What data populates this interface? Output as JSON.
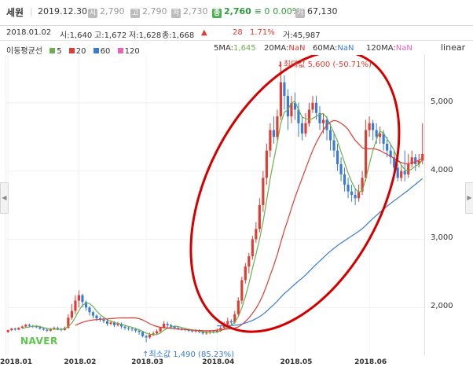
{
  "header": {
    "name": "세원",
    "date": "2019.12.30",
    "stats": [
      {
        "badge": "시",
        "value": "2,790"
      },
      {
        "badge": "고",
        "value": "2,790"
      },
      {
        "badge": "저",
        "value": "2,730"
      }
    ],
    "close_badge": "종",
    "close": "2,760",
    "change": "≡ 0",
    "change_pct": "0.00%",
    "volume_badge": "거",
    "volume": "67,130"
  },
  "info": {
    "date": "2018.01.02",
    "open": "시:1,640",
    "high": "고:1,672",
    "low": "저:1,628",
    "close": "종:1,668",
    "arrow": "▲",
    "change": "28",
    "change_pct": "1.71%",
    "volume": "거:45,987"
  },
  "ma_legend": {
    "title": "이동평균선",
    "items": [
      {
        "label": "5",
        "color": "#6ab04c"
      },
      {
        "label": "20",
        "color": "#e03c31"
      },
      {
        "label": "60",
        "color": "#3a7bd5"
      },
      {
        "label": "120",
        "color": "#e864b3"
      }
    ]
  },
  "ma_values": [
    {
      "label": "5MA:",
      "value": "1,645",
      "color": "#6ab04c"
    },
    {
      "label": "20MA:",
      "value": "NaN",
      "color": "#e03c31"
    },
    {
      "label": "60MA:",
      "value": "NaN",
      "color": "#3a7bd5"
    },
    {
      "label": "120MA:",
      "value": "NaN",
      "color": "#e864b3"
    }
  ],
  "scale_label": "linear",
  "colors": {
    "up": "#e03c31",
    "down": "#3a7bd5",
    "ma5": "#6ab04c",
    "ma20": "#e03c31",
    "ma60": "#3a7bd5",
    "ma120": "#e864b3",
    "ellipse": "#d40000"
  },
  "annotations": {
    "max": "최대값 5,600 (-50.71%)",
    "min": "최소값 1,490 (85.23%)"
  },
  "watermark": "NAVER",
  "chart_data": {
    "type": "candlestick",
    "ylim": [
      1300,
      5700
    ],
    "yticks": [
      2000,
      3000,
      4000,
      5000
    ],
    "x_ticks": [
      {
        "label": "2018.01",
        "i": 0
      },
      {
        "label": "2018.02",
        "i": 20
      },
      {
        "label": "2018.03",
        "i": 39
      },
      {
        "label": "2018.04",
        "i": 59
      },
      {
        "label": "2018.05",
        "i": 81
      },
      {
        "label": "2018.06",
        "i": 102
      }
    ],
    "candles": [
      [
        1640,
        1668,
        1672,
        1628
      ],
      [
        1668,
        1690,
        1700,
        1655
      ],
      [
        1690,
        1675,
        1705,
        1660
      ],
      [
        1675,
        1700,
        1710,
        1665
      ],
      [
        1700,
        1720,
        1735,
        1690
      ],
      [
        1720,
        1745,
        1760,
        1710
      ],
      [
        1745,
        1730,
        1765,
        1715
      ],
      [
        1730,
        1725,
        1745,
        1700
      ],
      [
        1725,
        1710,
        1740,
        1695
      ],
      [
        1710,
        1690,
        1720,
        1675
      ],
      [
        1690,
        1675,
        1705,
        1660
      ],
      [
        1675,
        1660,
        1690,
        1640
      ],
      [
        1660,
        1680,
        1700,
        1645
      ],
      [
        1680,
        1700,
        1720,
        1670
      ],
      [
        1700,
        1685,
        1720,
        1665
      ],
      [
        1685,
        1670,
        1700,
        1650
      ],
      [
        1670,
        1700,
        1720,
        1660
      ],
      [
        1700,
        1850,
        1900,
        1690
      ],
      [
        1850,
        1950,
        2050,
        1820
      ],
      [
        1950,
        2100,
        2180,
        1900
      ],
      [
        2100,
        2180,
        2250,
        2000
      ],
      [
        2180,
        2080,
        2200,
        2000
      ],
      [
        2080,
        2000,
        2100,
        1950
      ],
      [
        2000,
        1930,
        2020,
        1880
      ],
      [
        1930,
        1880,
        1950,
        1840
      ],
      [
        1880,
        1840,
        1900,
        1800
      ],
      [
        1840,
        1820,
        1870,
        1790
      ],
      [
        1820,
        1800,
        1850,
        1770
      ],
      [
        1800,
        1760,
        1820,
        1730
      ],
      [
        1760,
        1780,
        1810,
        1740
      ],
      [
        1780,
        1740,
        1800,
        1710
      ],
      [
        1740,
        1760,
        1790,
        1720
      ],
      [
        1760,
        1720,
        1780,
        1690
      ],
      [
        1720,
        1700,
        1740,
        1670
      ],
      [
        1700,
        1690,
        1720,
        1660
      ],
      [
        1690,
        1680,
        1710,
        1650
      ],
      [
        1680,
        1660,
        1700,
        1630
      ],
      [
        1660,
        1640,
        1680,
        1600
      ],
      [
        1640,
        1580,
        1650,
        1560
      ],
      [
        1580,
        1560,
        1600,
        1490
      ],
      [
        1560,
        1600,
        1630,
        1540
      ],
      [
        1600,
        1620,
        1650,
        1580
      ],
      [
        1620,
        1650,
        1680,
        1600
      ],
      [
        1650,
        1700,
        1720,
        1630
      ],
      [
        1700,
        1760,
        1800,
        1690
      ],
      [
        1760,
        1740,
        1790,
        1700
      ],
      [
        1740,
        1720,
        1760,
        1690
      ],
      [
        1720,
        1700,
        1740,
        1680
      ],
      [
        1700,
        1690,
        1720,
        1670
      ],
      [
        1690,
        1680,
        1710,
        1660
      ],
      [
        1680,
        1670,
        1700,
        1650
      ],
      [
        1670,
        1660,
        1690,
        1640
      ],
      [
        1660,
        1650,
        1680,
        1630
      ],
      [
        1650,
        1660,
        1680,
        1630
      ],
      [
        1660,
        1640,
        1680,
        1620
      ],
      [
        1640,
        1620,
        1660,
        1600
      ],
      [
        1620,
        1630,
        1650,
        1600
      ],
      [
        1630,
        1650,
        1670,
        1610
      ],
      [
        1650,
        1640,
        1670,
        1620
      ],
      [
        1640,
        1660,
        1690,
        1620
      ],
      [
        1660,
        1700,
        1730,
        1640
      ],
      [
        1700,
        1750,
        1790,
        1680
      ],
      [
        1750,
        1800,
        1850,
        1720
      ],
      [
        1800,
        1780,
        1830,
        1750
      ],
      [
        1780,
        1900,
        1950,
        1760
      ],
      [
        1900,
        2100,
        2150,
        1880
      ],
      [
        2100,
        2400,
        2450,
        2050
      ],
      [
        2400,
        2600,
        2650,
        2350
      ],
      [
        2600,
        2750,
        2800,
        2500
      ],
      [
        2750,
        3000,
        3050,
        2700
      ],
      [
        3000,
        3150,
        3250,
        2950
      ],
      [
        3150,
        3500,
        3600,
        3100
      ],
      [
        3500,
        3900,
        4000,
        3400
      ],
      [
        3900,
        4300,
        4400,
        3800
      ],
      [
        4300,
        4600,
        4700,
        4200
      ],
      [
        4600,
        4500,
        4800,
        4400
      ],
      [
        4500,
        4800,
        4900,
        4450
      ],
      [
        4800,
        5300,
        5600,
        4750
      ],
      [
        5300,
        5100,
        5400,
        4900
      ],
      [
        5100,
        4800,
        5200,
        4600
      ],
      [
        4800,
        5000,
        5100,
        4700
      ],
      [
        5000,
        4900,
        5150,
        4750
      ],
      [
        4900,
        4700,
        5000,
        4500
      ],
      [
        4700,
        4550,
        4800,
        4450
      ],
      [
        4550,
        4700,
        4850,
        4500
      ],
      [
        4700,
        4900,
        5000,
        4650
      ],
      [
        4900,
        5000,
        5100,
        4850
      ],
      [
        5000,
        4850,
        5100,
        4750
      ],
      [
        4850,
        4700,
        4950,
        4600
      ],
      [
        4700,
        4750,
        4850,
        4550
      ],
      [
        4750,
        4600,
        4800,
        4450
      ],
      [
        4600,
        4450,
        4700,
        4300
      ],
      [
        4450,
        4300,
        4550,
        4200
      ],
      [
        4300,
        4100,
        4400,
        4000
      ],
      [
        4100,
        3950,
        4200,
        3850
      ],
      [
        3950,
        3800,
        4050,
        3700
      ],
      [
        3800,
        3700,
        3900,
        3600
      ],
      [
        3700,
        3650,
        3800,
        3550
      ],
      [
        3650,
        3600,
        3750,
        3500
      ],
      [
        3600,
        3700,
        3800,
        3550
      ],
      [
        3700,
        3900,
        4000,
        3650
      ],
      [
        3900,
        4600,
        4750,
        3850
      ],
      [
        4600,
        4700,
        4800,
        4500
      ],
      [
        4700,
        4600,
        4750,
        4450
      ],
      [
        4600,
        4500,
        4700,
        4400
      ],
      [
        4500,
        4550,
        4650,
        4400
      ],
      [
        4550,
        4400,
        4600,
        4300
      ],
      [
        4400,
        4300,
        4500,
        4200
      ],
      [
        4300,
        4200,
        4400,
        4100
      ],
      [
        4200,
        4050,
        4300,
        3950
      ],
      [
        4050,
        3900,
        4100,
        3850
      ],
      [
        3900,
        4000,
        4100,
        3850
      ],
      [
        4000,
        3950,
        4300,
        3850
      ],
      [
        3950,
        4100,
        4250,
        3900
      ],
      [
        4100,
        4200,
        4300,
        4050
      ],
      [
        4200,
        4100,
        4250,
        4000
      ],
      [
        4100,
        4150,
        4250,
        4050
      ],
      [
        4150,
        4250,
        4700,
        4100
      ]
    ]
  }
}
